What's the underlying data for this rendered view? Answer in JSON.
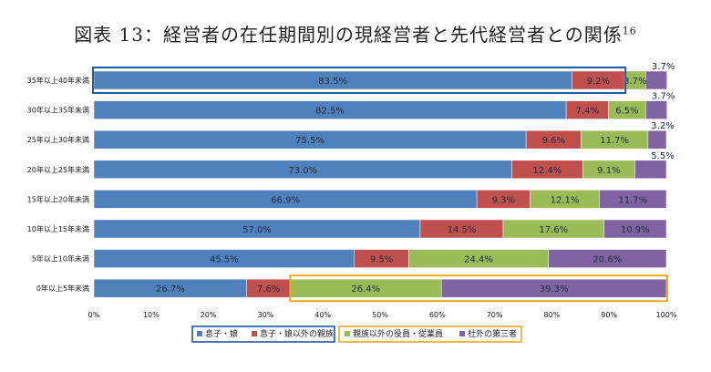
{
  "title": {
    "main": "図表 13：経営者の在任期間別の現経営者と先代経営者との関係",
    "footnote": "16"
  },
  "colors": {
    "series": [
      "#4f81bd",
      "#c0504d",
      "#9bbb59",
      "#8064a2"
    ],
    "highlight_blue": "#2457a6",
    "highlight_orange": "#f0a81c"
  },
  "chart_data": {
    "type": "bar",
    "orientation": "horizontal",
    "stacked": "percent",
    "categories": [
      "35年以上40年未満",
      "30年以上35年未満",
      "25年以上30年未満",
      "20年以上25年未満",
      "15年以上20年未満",
      "10年以上15年未満",
      "5年以上10年未満",
      "0年以上5年未満"
    ],
    "series": [
      {
        "name": "息子・娘",
        "values": [
          83.5,
          82.5,
          75.5,
          73.0,
          66.9,
          57.0,
          45.5,
          26.7
        ],
        "labels": [
          "83.5%",
          "82.5%",
          "75.5%",
          "73.0%",
          "66.9%",
          "57.0%",
          "45.5%",
          "26.7%"
        ]
      },
      {
        "name": "息子・娘以外の親族",
        "values": [
          9.2,
          7.4,
          9.6,
          12.4,
          9.3,
          14.5,
          9.5,
          7.6
        ],
        "labels": [
          "9.2%",
          "7.4%",
          "9.6%",
          "12.4%",
          "9.3%",
          "14.5%",
          "9.5%",
          "7.6%"
        ]
      },
      {
        "name": "親族以外の役員・従業員",
        "values": [
          3.7,
          6.5,
          11.7,
          9.1,
          12.1,
          17.6,
          24.4,
          26.4
        ],
        "labels": [
          "3.7%",
          "6.5%",
          "11.7%",
          "9.1%",
          "12.1%",
          "17.6%",
          "24.4%",
          "26.4%"
        ]
      },
      {
        "name": "社外の第三者",
        "values": [
          3.7,
          3.7,
          3.2,
          5.5,
          11.7,
          10.9,
          20.6,
          39.3
        ],
        "labels": [
          "3.7%",
          "3.7%",
          "3.2%",
          "5.5%",
          "11.7%",
          "10.9%",
          "20.6%",
          "39.3%"
        ]
      }
    ],
    "xlim": [
      0,
      100
    ],
    "xticks": [
      "0%",
      "10%",
      "20%",
      "30%",
      "40%",
      "50%",
      "60%",
      "70%",
      "80%",
      "90%",
      "100%"
    ],
    "legend_position": "bottom",
    "annotations": [
      {
        "type": "highlight-box",
        "color": "blue",
        "category": "35年以上40年未満",
        "series": [
          "息子・娘",
          "息子・娘以外の親族"
        ]
      },
      {
        "type": "highlight-box",
        "color": "orange",
        "category": "0年以上5年未満",
        "series": [
          "親族以外の役員・従業員",
          "社外の第三者"
        ]
      },
      {
        "type": "legend-box",
        "color": "blue",
        "series": [
          "息子・娘",
          "息子・娘以外の親族"
        ]
      },
      {
        "type": "legend-box",
        "color": "orange",
        "series": [
          "親族以外の役員・従業員",
          "社外の第三者"
        ]
      }
    ]
  }
}
